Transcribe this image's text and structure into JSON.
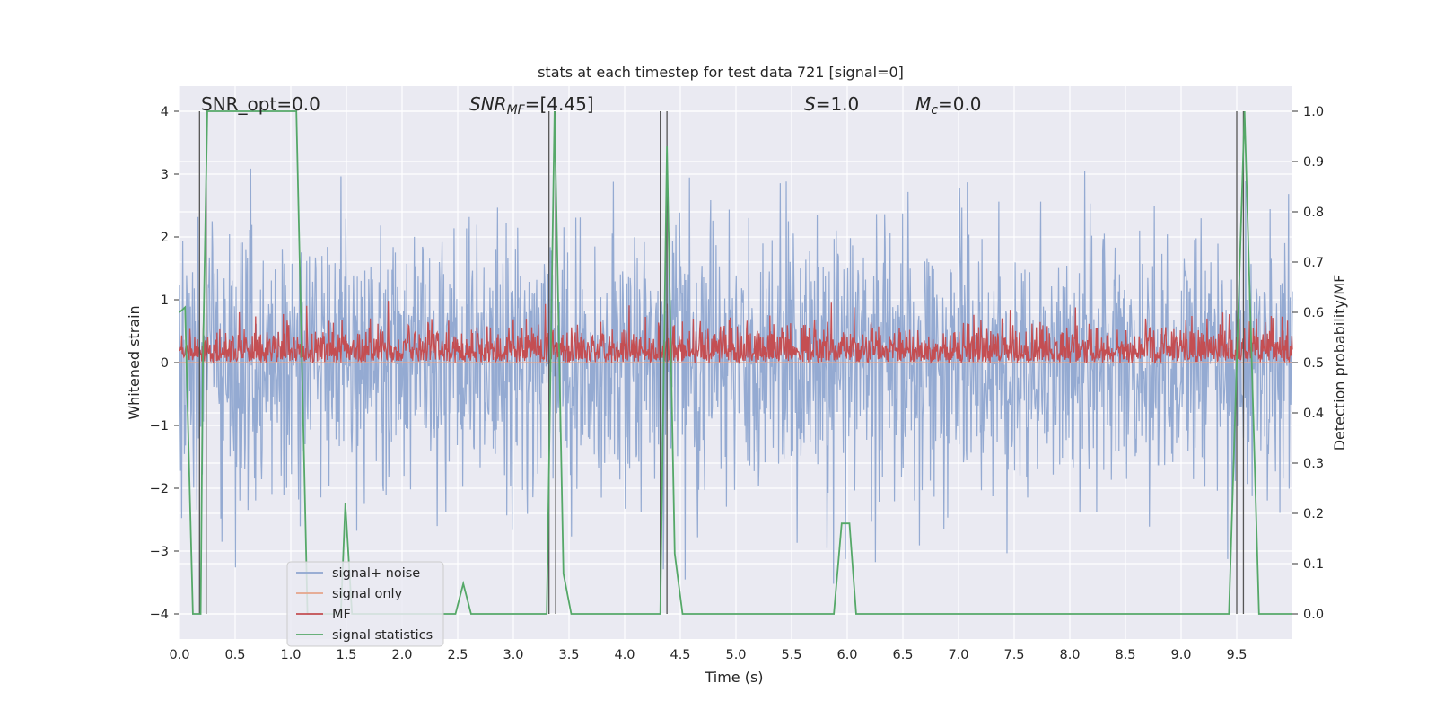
{
  "chart_data": {
    "type": "line",
    "title": "stats at each timestep for test data 721 [signal=0]",
    "xlabel": "Time (s)",
    "ylabel": "Whitened strain",
    "y2label": "Detection probability/MF",
    "xlim": [
      0.0,
      10.0
    ],
    "ylim": [
      -4.4,
      4.4
    ],
    "y2lim": [
      -0.05,
      1.05
    ],
    "grid": true,
    "legend_position": "lower-left",
    "x_ticks": [
      "0.0",
      "0.5",
      "1.0",
      "1.5",
      "2.0",
      "2.5",
      "3.0",
      "3.5",
      "4.0",
      "4.5",
      "5.0",
      "5.5",
      "6.0",
      "6.5",
      "7.0",
      "7.5",
      "8.0",
      "8.5",
      "9.0",
      "9.5"
    ],
    "y_ticks": [
      "−4",
      "−3",
      "−2",
      "−1",
      "0",
      "1",
      "2",
      "3",
      "4"
    ],
    "y2_ticks": [
      "0.0",
      "0.1",
      "0.2",
      "0.3",
      "0.4",
      "0.5",
      "0.6",
      "0.7",
      "0.8",
      "0.9",
      "1.0"
    ],
    "annotations": {
      "snr_opt": "SNR_opt=0.0",
      "snr_mf_label": "SNR",
      "snr_mf_sub": "MF",
      "snr_mf_value": "=[4.45]",
      "s_label": "S",
      "s_value": "=1.0",
      "mc_label": "M",
      "mc_sub": "c",
      "mc_value": "=0.0"
    },
    "series": [
      {
        "name": "signal+ noise",
        "color": "#8fa6d0",
        "axis": "left",
        "description": "whitened noisy strain, roughly symmetric noise between -4 and 4",
        "samples": 2048,
        "amplitude_sigma": 1.0
      },
      {
        "name": "signal only",
        "color": "#e6a48a",
        "axis": "left",
        "values_constant": 0.0
      },
      {
        "name": "MF",
        "color": "#c44e52",
        "axis": "right",
        "description": "matched filter output fluctuating between about 0.5 and 0.63",
        "baseline": 0.5,
        "max": 0.63
      },
      {
        "name": "signal statistics",
        "color": "#55a868",
        "axis": "right",
        "x": [
          0.0,
          0.05,
          0.12,
          0.19,
          0.21,
          0.25,
          1.05,
          1.1,
          1.15,
          1.45,
          1.49,
          1.55,
          1.6,
          2.48,
          2.55,
          2.62,
          3.3,
          3.37,
          3.45,
          3.52,
          4.32,
          4.38,
          4.45,
          4.52,
          5.88,
          5.95,
          6.02,
          6.08,
          9.43,
          9.57,
          9.7,
          10.0
        ],
        "y": [
          0.6,
          0.61,
          0.0,
          0.0,
          0.5,
          1.0,
          1.0,
          0.5,
          0.0,
          0.0,
          0.22,
          0.0,
          0.0,
          0.0,
          0.06,
          0.0,
          0.0,
          1.0,
          0.08,
          0.0,
          0.0,
          0.93,
          0.12,
          0.0,
          0.0,
          0.18,
          0.18,
          0.0,
          0.0,
          1.0,
          0.0,
          0.0
        ]
      }
    ],
    "vertical_markers": [
      0.18,
      0.24,
      3.32,
      3.38,
      4.32,
      4.38,
      9.5,
      9.56
    ]
  }
}
